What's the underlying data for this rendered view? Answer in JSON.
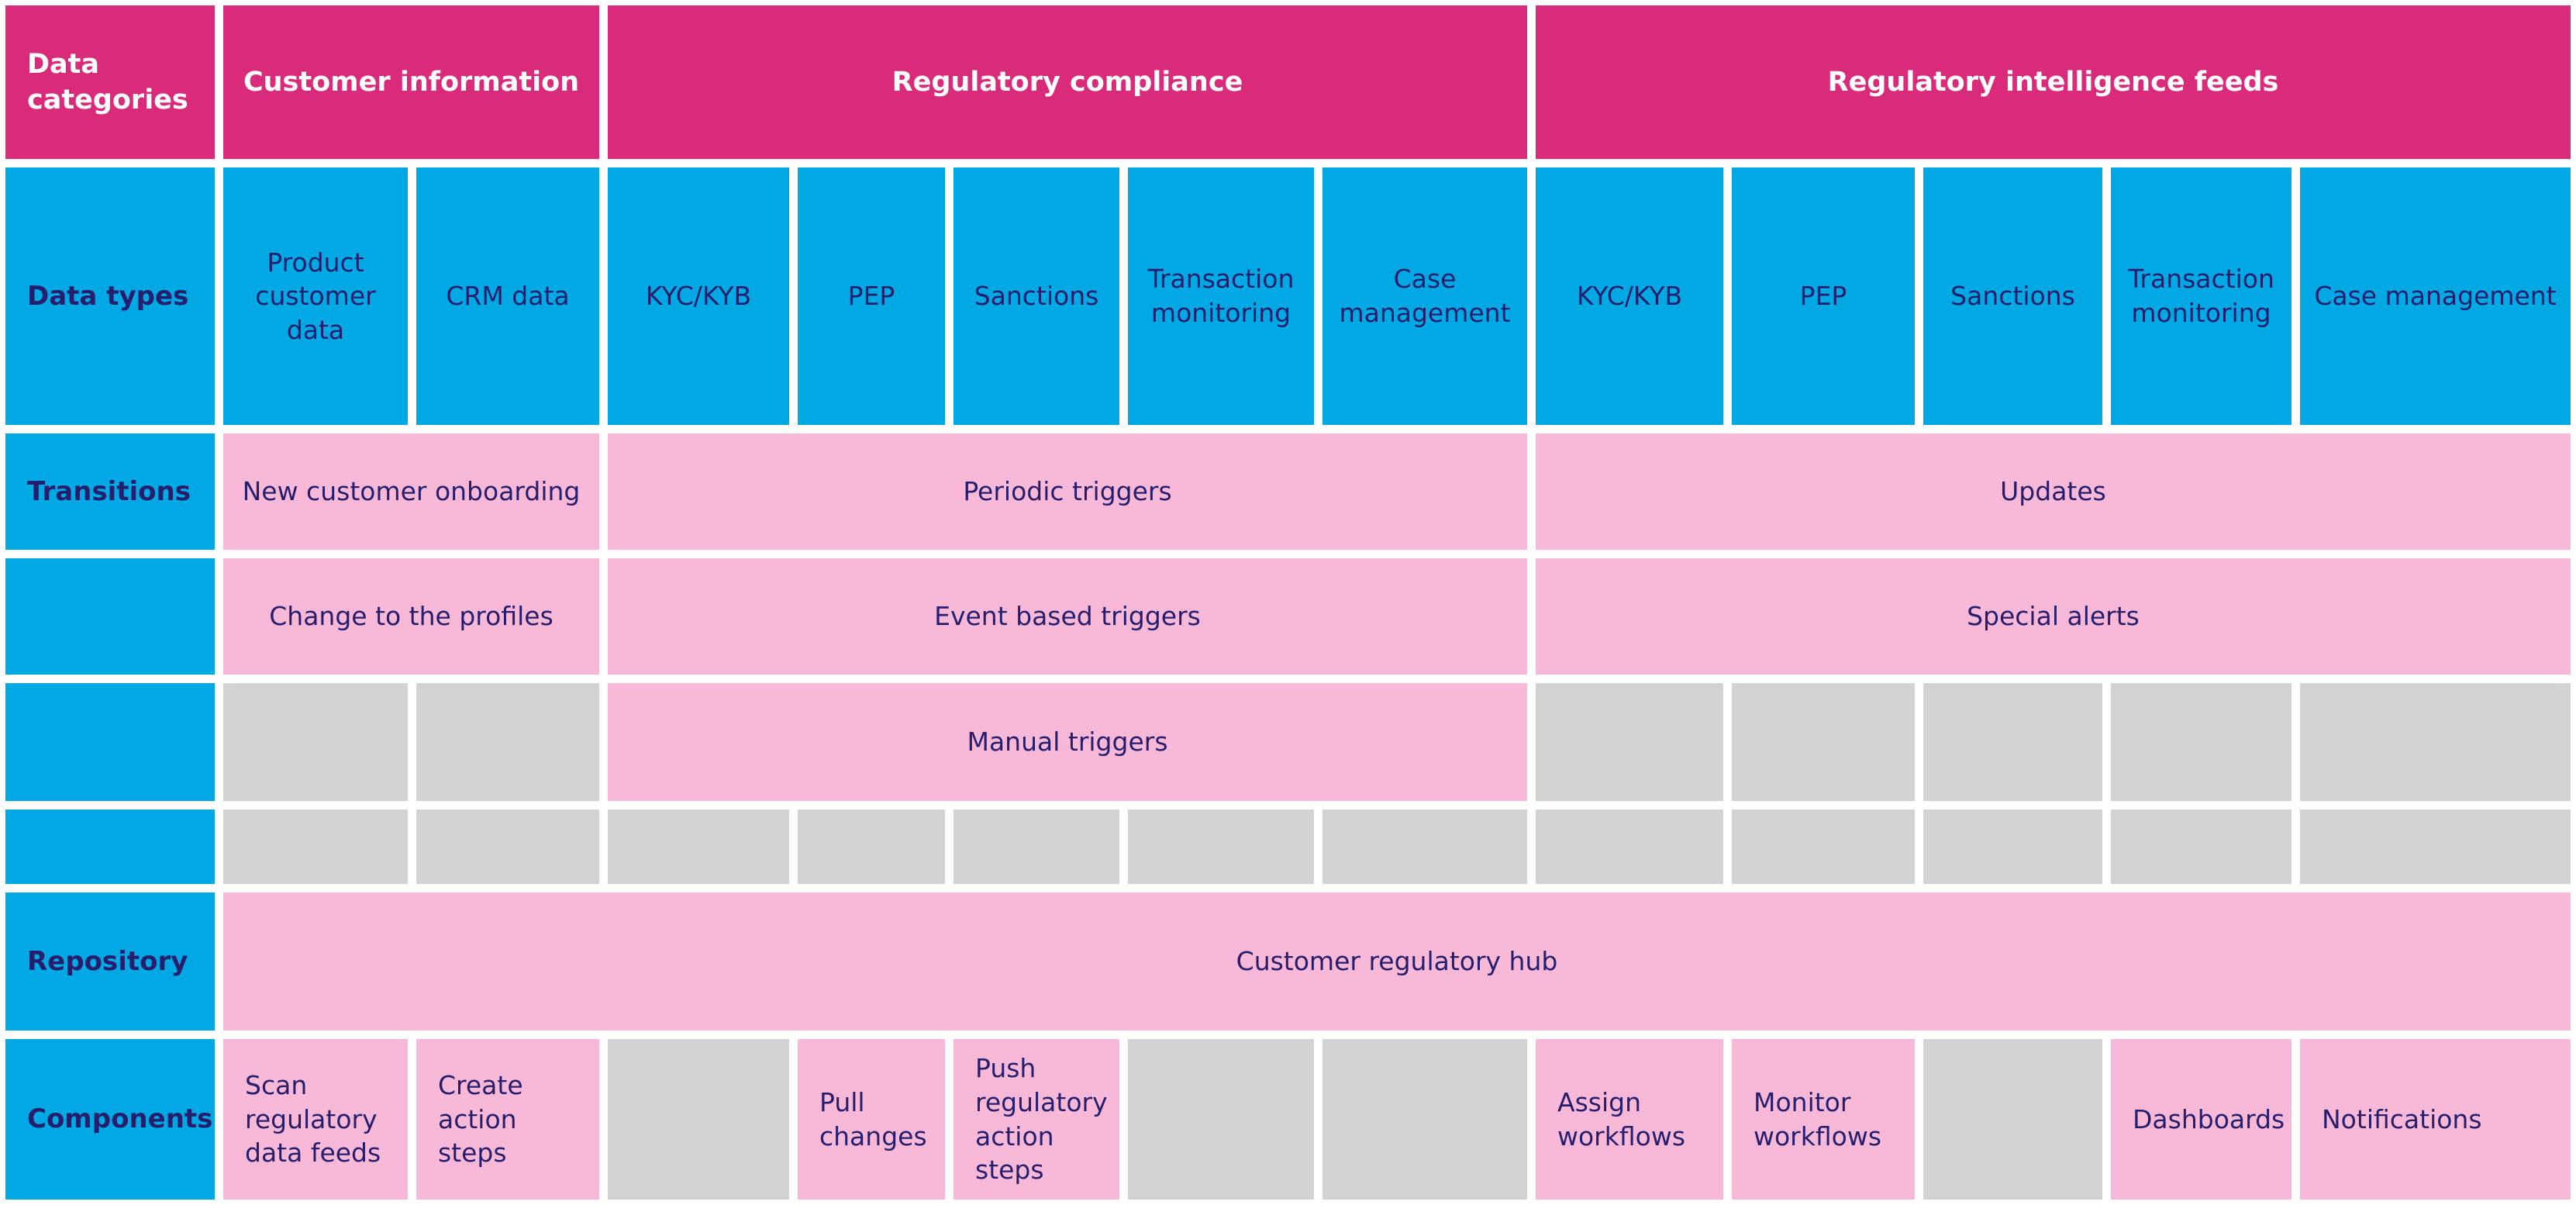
{
  "palette": {
    "header_magenta": "#D92B7A",
    "label_blue": "#00A9E4",
    "cell_pink": "#F8B9D8",
    "cell_gray": "#D2D2D2",
    "text_navy": "#261D6C",
    "header_text": "#FFFFFF",
    "gap_white": "#FFFFFF"
  },
  "rows": {
    "categories": {
      "label": "Data categories",
      "sections": [
        {
          "label": "Customer information"
        },
        {
          "label": "Regulatory compliance"
        },
        {
          "label": "Regulatory intelligence feeds"
        }
      ]
    },
    "data_types": {
      "label": "Data types",
      "cells": [
        "Product customer data",
        "CRM data",
        "KYC/KYB",
        "PEP",
        "Sanctions",
        "Transaction monitoring",
        "Case management",
        "KYC/KYB",
        "PEP",
        "Sanctions",
        "Transaction monitoring",
        "Case management"
      ]
    },
    "transitions": {
      "label": "Transitions",
      "onboarding": "New customer onboarding",
      "periodic": "Periodic triggers",
      "updates": "Updates",
      "change_profiles": "Change to the profiles",
      "event_based": "Event based triggers",
      "special_alerts": "Special alerts",
      "manual": "Manual triggers"
    },
    "repository": {
      "label": "Repository",
      "hub": "Customer regulatory hub"
    },
    "components": {
      "label": "Components",
      "scan": "Scan regulatory data feeds",
      "create": "Create action steps",
      "pull": "Pull changes",
      "push": "Push regulatory action steps",
      "assign": "Assign workflows",
      "monitor": "Monitor workflows",
      "dashboards": "Dashboards",
      "notifications": "Notifications"
    }
  }
}
